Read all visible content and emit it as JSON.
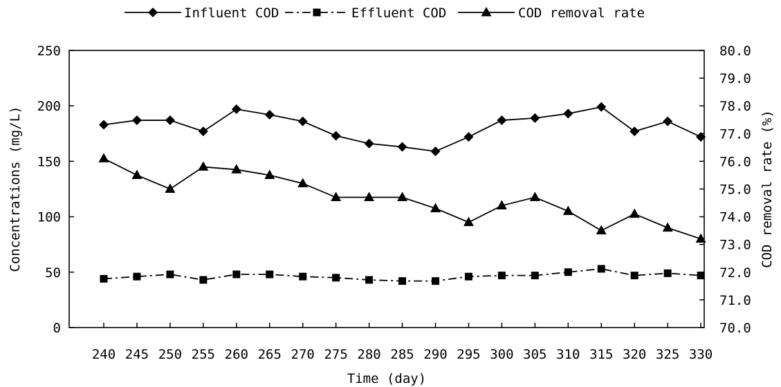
{
  "chart_data": {
    "type": "line",
    "xlabel": "Time (day)",
    "ylabel_left": "Concentrations (mg/L)",
    "ylabel_right": "COD removal rate (%)",
    "x": [
      240,
      245,
      250,
      255,
      260,
      265,
      270,
      275,
      280,
      285,
      290,
      295,
      300,
      305,
      310,
      315,
      320,
      325,
      330
    ],
    "x_tick_labels": [
      "240",
      "245",
      "250",
      "255",
      "260",
      "265",
      "270",
      "275",
      "280",
      "285",
      "290",
      "295",
      "300",
      "305",
      "310",
      "315",
      "320",
      "325",
      "330"
    ],
    "ylim_left": [
      0,
      250
    ],
    "yticks_left": [
      "0",
      "50",
      "100",
      "150",
      "200",
      "250"
    ],
    "ylim_right": [
      70.0,
      80.0
    ],
    "yticks_right": [
      "70.0",
      "71.0",
      "72.0",
      "73.0",
      "74.0",
      "75.0",
      "76.0",
      "77.0",
      "78.0",
      "79.0",
      "80.0"
    ],
    "grid": false,
    "legend_position": "top",
    "series": [
      {
        "name": "Influent COD",
        "axis": "left",
        "marker": "diamond",
        "line_style": "solid",
        "values": [
          183,
          187,
          187,
          177,
          197,
          192,
          186,
          173,
          166,
          163,
          159,
          172,
          187,
          189,
          193,
          199,
          177,
          186,
          172
        ]
      },
      {
        "name": "Effluent COD",
        "axis": "left",
        "marker": "square",
        "line_style": "dash-dot",
        "values": [
          44,
          46,
          48,
          43,
          48,
          48,
          46,
          45,
          43,
          42,
          42,
          46,
          47,
          47,
          50,
          53,
          47,
          49,
          47
        ]
      },
      {
        "name": "COD removal rate",
        "axis": "right",
        "marker": "triangle",
        "line_style": "solid",
        "values": [
          76.1,
          75.5,
          75.0,
          75.8,
          75.7,
          75.5,
          75.2,
          74.7,
          74.7,
          74.7,
          74.3,
          73.8,
          74.4,
          74.7,
          74.2,
          73.5,
          74.1,
          73.6,
          73.2
        ]
      }
    ]
  }
}
